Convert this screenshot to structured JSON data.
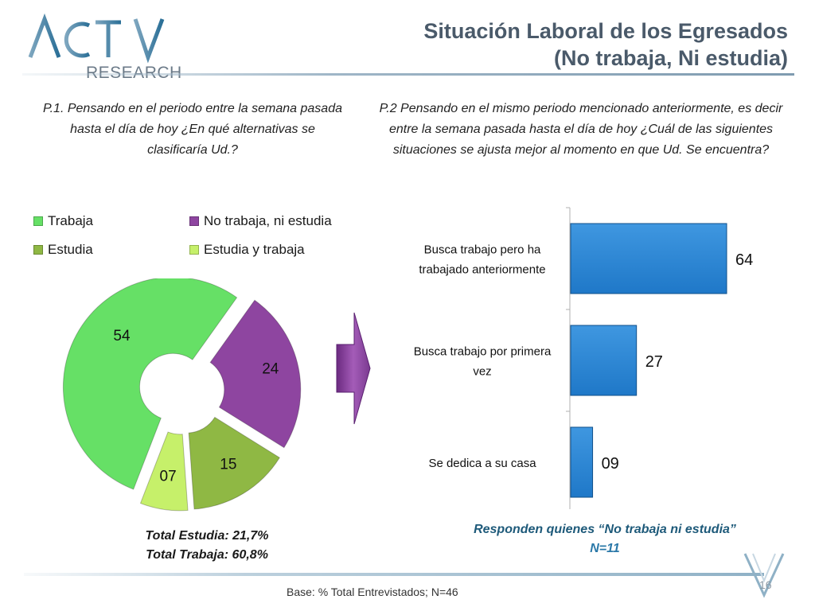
{
  "header": {
    "logo_text": "ACTIVA",
    "logo_subtext": "RESEARCH",
    "title_line1": "Situación Laboral de los Egresados",
    "title_line2": "(No trabaja, Ni estudia)"
  },
  "questions": {
    "q1": "P.1.  Pensando en el periodo entre la semana pasada hasta el día de hoy ¿En qué alternativas se clasificaría Ud.?",
    "q2": "P.2  Pensando en el mismo periodo mencionado anteriormente, es decir entre la semana pasada hasta el día de hoy ¿Cuál de las siguientes situaciones se ajusta mejor al momento en que Ud. Se encuentra?"
  },
  "colors": {
    "trabaja": "#66e066",
    "no_trabaja": "#8e45a0",
    "estudia": "#8fb844",
    "estudia_trabaja": "#c6f06a",
    "bar": "#1f78c8"
  },
  "chart_data": [
    {
      "type": "pie",
      "variant": "donut",
      "legend": [
        "Trabaja",
        "No trabaja, ni estudia",
        "Estudia",
        "Estudia y trabaja"
      ],
      "series": [
        {
          "label": "Trabaja",
          "value": 54,
          "display": "54"
        },
        {
          "label": "No trabaja, ni estudia",
          "value": 24,
          "display": "24"
        },
        {
          "label": "Estudia",
          "value": 15,
          "display": "15"
        },
        {
          "label": "Estudia y trabaja",
          "value": 7,
          "display": "07"
        }
      ]
    },
    {
      "type": "bar",
      "orientation": "horizontal",
      "categories": [
        "Busca trabajo pero ha trabajado anteriormente",
        "Busca trabajo por primera vez",
        "Se dedica a su casa"
      ],
      "category_lines": [
        [
          "Busca trabajo pero ha",
          "trabajado anteriormente"
        ],
        [
          "Busca trabajo por primera",
          "vez"
        ],
        [
          "Se dedica a su casa"
        ]
      ],
      "values": [
        64,
        27,
        9
      ],
      "value_labels": [
        "64",
        "27",
        "09"
      ]
    }
  ],
  "footer": {
    "total_estudia": "Total Estudia: 21,7%",
    "total_trabaja": "Total Trabaja: 60,8%",
    "responden": "Responden quienes “No trabaja ni estudia”",
    "n": "N=11",
    "base": "Base: % Total Entrevistados; N=46",
    "page": "16"
  }
}
